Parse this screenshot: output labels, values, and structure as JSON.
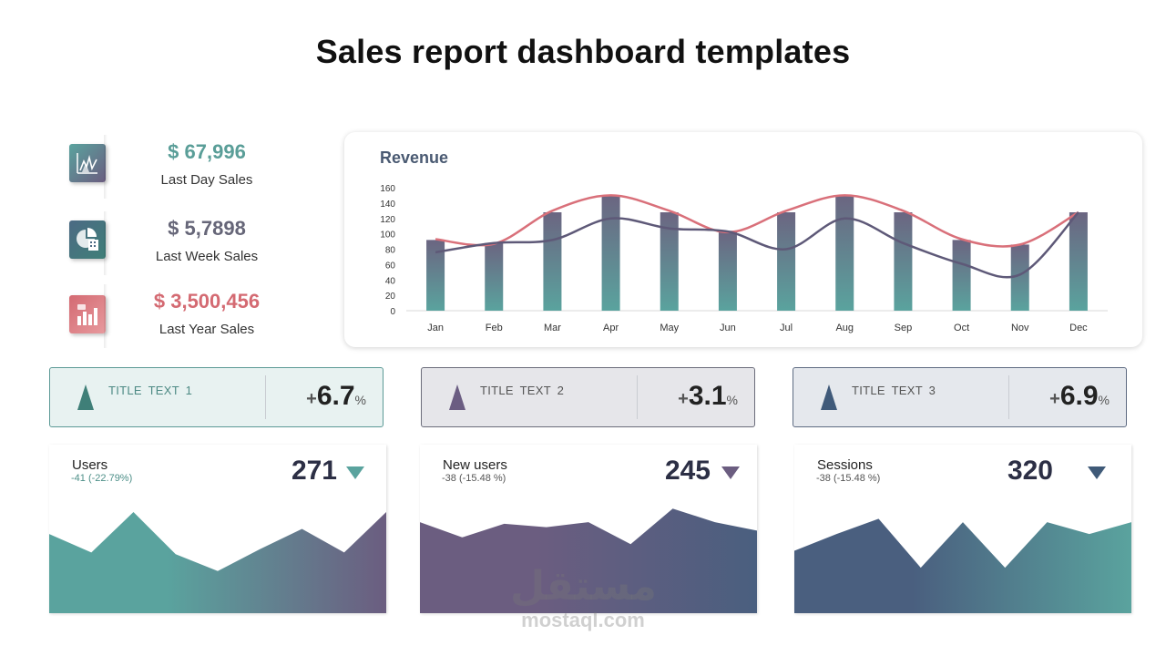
{
  "title": "Sales report dashboard templates",
  "kpis": [
    {
      "value": "$ 67,996",
      "label": "Last Day Sales",
      "color": "#5a9e98",
      "icon": "chart-icon"
    },
    {
      "value": "$ 5,7898",
      "label": "Last Week Sales",
      "color": "#666678",
      "icon": "calculator-pie-icon"
    },
    {
      "value": "$ 3,500,456",
      "label": "Last Year Sales",
      "color": "#d46a72",
      "icon": "bar-chart-icon"
    }
  ],
  "chart_data": {
    "type": "bar",
    "title": "Revenue",
    "categories": [
      "Jan",
      "Feb",
      "Mar",
      "Apr",
      "May",
      "Jun",
      "Jul",
      "Aug",
      "Sep",
      "Oct",
      "Nov",
      "Dec"
    ],
    "ylim": [
      0,
      160
    ],
    "yticks": [
      0,
      20,
      40,
      60,
      80,
      100,
      120,
      140,
      160
    ],
    "series": [
      {
        "type": "bar",
        "values": [
          92,
          88,
          128,
          150,
          128,
          104,
          128,
          150,
          128,
          92,
          86,
          128
        ]
      },
      {
        "type": "line",
        "values": [
          93,
          87,
          130,
          150,
          130,
          102,
          130,
          150,
          130,
          93,
          86,
          128
        ],
        "color": "#d9707a"
      },
      {
        "type": "line",
        "values": [
          76,
          88,
          92,
          120,
          107,
          103,
          80,
          120,
          88,
          61,
          47,
          128
        ],
        "color": "#5e5978"
      }
    ],
    "grid": false,
    "bar_gradient": [
      "#6b6581",
      "#5aa39e"
    ]
  },
  "title_boxes": [
    {
      "label": "TITLE TEXT 1",
      "plus": "+",
      "value": "6.7",
      "unit": "%",
      "bg": "#e8f2f1",
      "border": "#5c9a96",
      "tri": "#3f7f78",
      "text": "#4d8a84"
    },
    {
      "label": "TITLE TEXT 2",
      "plus": "+",
      "value": "3.1",
      "unit": "%",
      "bg": "#e6e6ea",
      "border": "#6b6d7b",
      "tri": "#6b5d82",
      "text": "#555"
    },
    {
      "label": "TITLE TEXT 3",
      "plus": "+",
      "value": "6.9",
      "unit": "%",
      "bg": "#e5e8ed",
      "border": "#5e6b82",
      "tri": "#405a7a",
      "text": "#555"
    }
  ],
  "metrics": [
    {
      "name": "Users",
      "delta": "-41 (-22.79%)",
      "delta_color": "#4d8f88",
      "value": "271",
      "arrow_color": "#5aa39e",
      "area": [
        0.47,
        0.36,
        0.6,
        0.35,
        0.25,
        0.38,
        0.5,
        0.36,
        0.6
      ],
      "grad": [
        "#5aa39e",
        "#6b5d80"
      ]
    },
    {
      "name": "New users",
      "delta": "-38 (-15.48 %)",
      "delta_color": "#555",
      "value": "245",
      "arrow_color": "#6b5d80",
      "area": [
        0.54,
        0.45,
        0.53,
        0.51,
        0.54,
        0.41,
        0.62,
        0.54,
        0.49
      ],
      "grad": [
        "#6b5d80",
        "#4a5f7f"
      ]
    },
    {
      "name": "Sessions",
      "delta": "-38 (-15.48 %)",
      "delta_color": "#555",
      "value": "320",
      "arrow_color": "#3f5a78",
      "area": [
        0.37,
        0.47,
        0.56,
        0.27,
        0.54,
        0.27,
        0.54,
        0.47,
        0.54
      ],
      "grad": [
        "#4a5f7f",
        "#5aa39e"
      ]
    }
  ],
  "watermark": {
    "arabic": "مستقل",
    "latin": "mostaql.com"
  }
}
